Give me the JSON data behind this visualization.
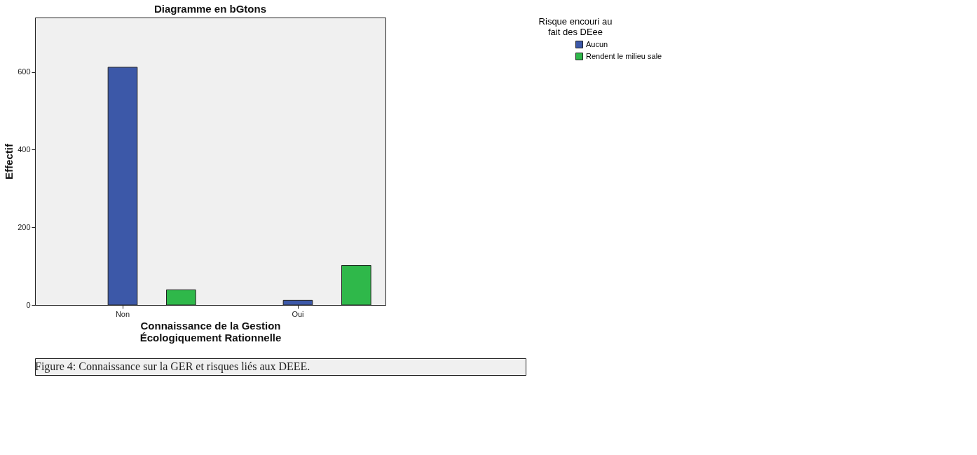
{
  "chart_data": {
    "type": "bar",
    "title": "Diagramme en bGtons",
    "xlabel": "Connaissance de la Gestion Écologiquement Rationnelle",
    "ylabel": "Effectif",
    "legend_title": "Risque encouri au fait des DEee",
    "categories": [
      "Non",
      "Oui"
    ],
    "series": [
      {
        "name": "Aucun",
        "color": "#3c58a8",
        "values": [
          612,
          12
        ]
      },
      {
        "name": "Rendent le milieu sale",
        "color": "#2fb84a",
        "values": [
          39,
          102
        ]
      }
    ],
    "ylim": [
      0,
      740
    ],
    "yticks": [
      0,
      200,
      400,
      600
    ],
    "grid": false,
    "legend": "top right",
    "annotations": [
      "Figure 4: Connaissance sur la GER et risques liés aux DEEE."
    ]
  }
}
